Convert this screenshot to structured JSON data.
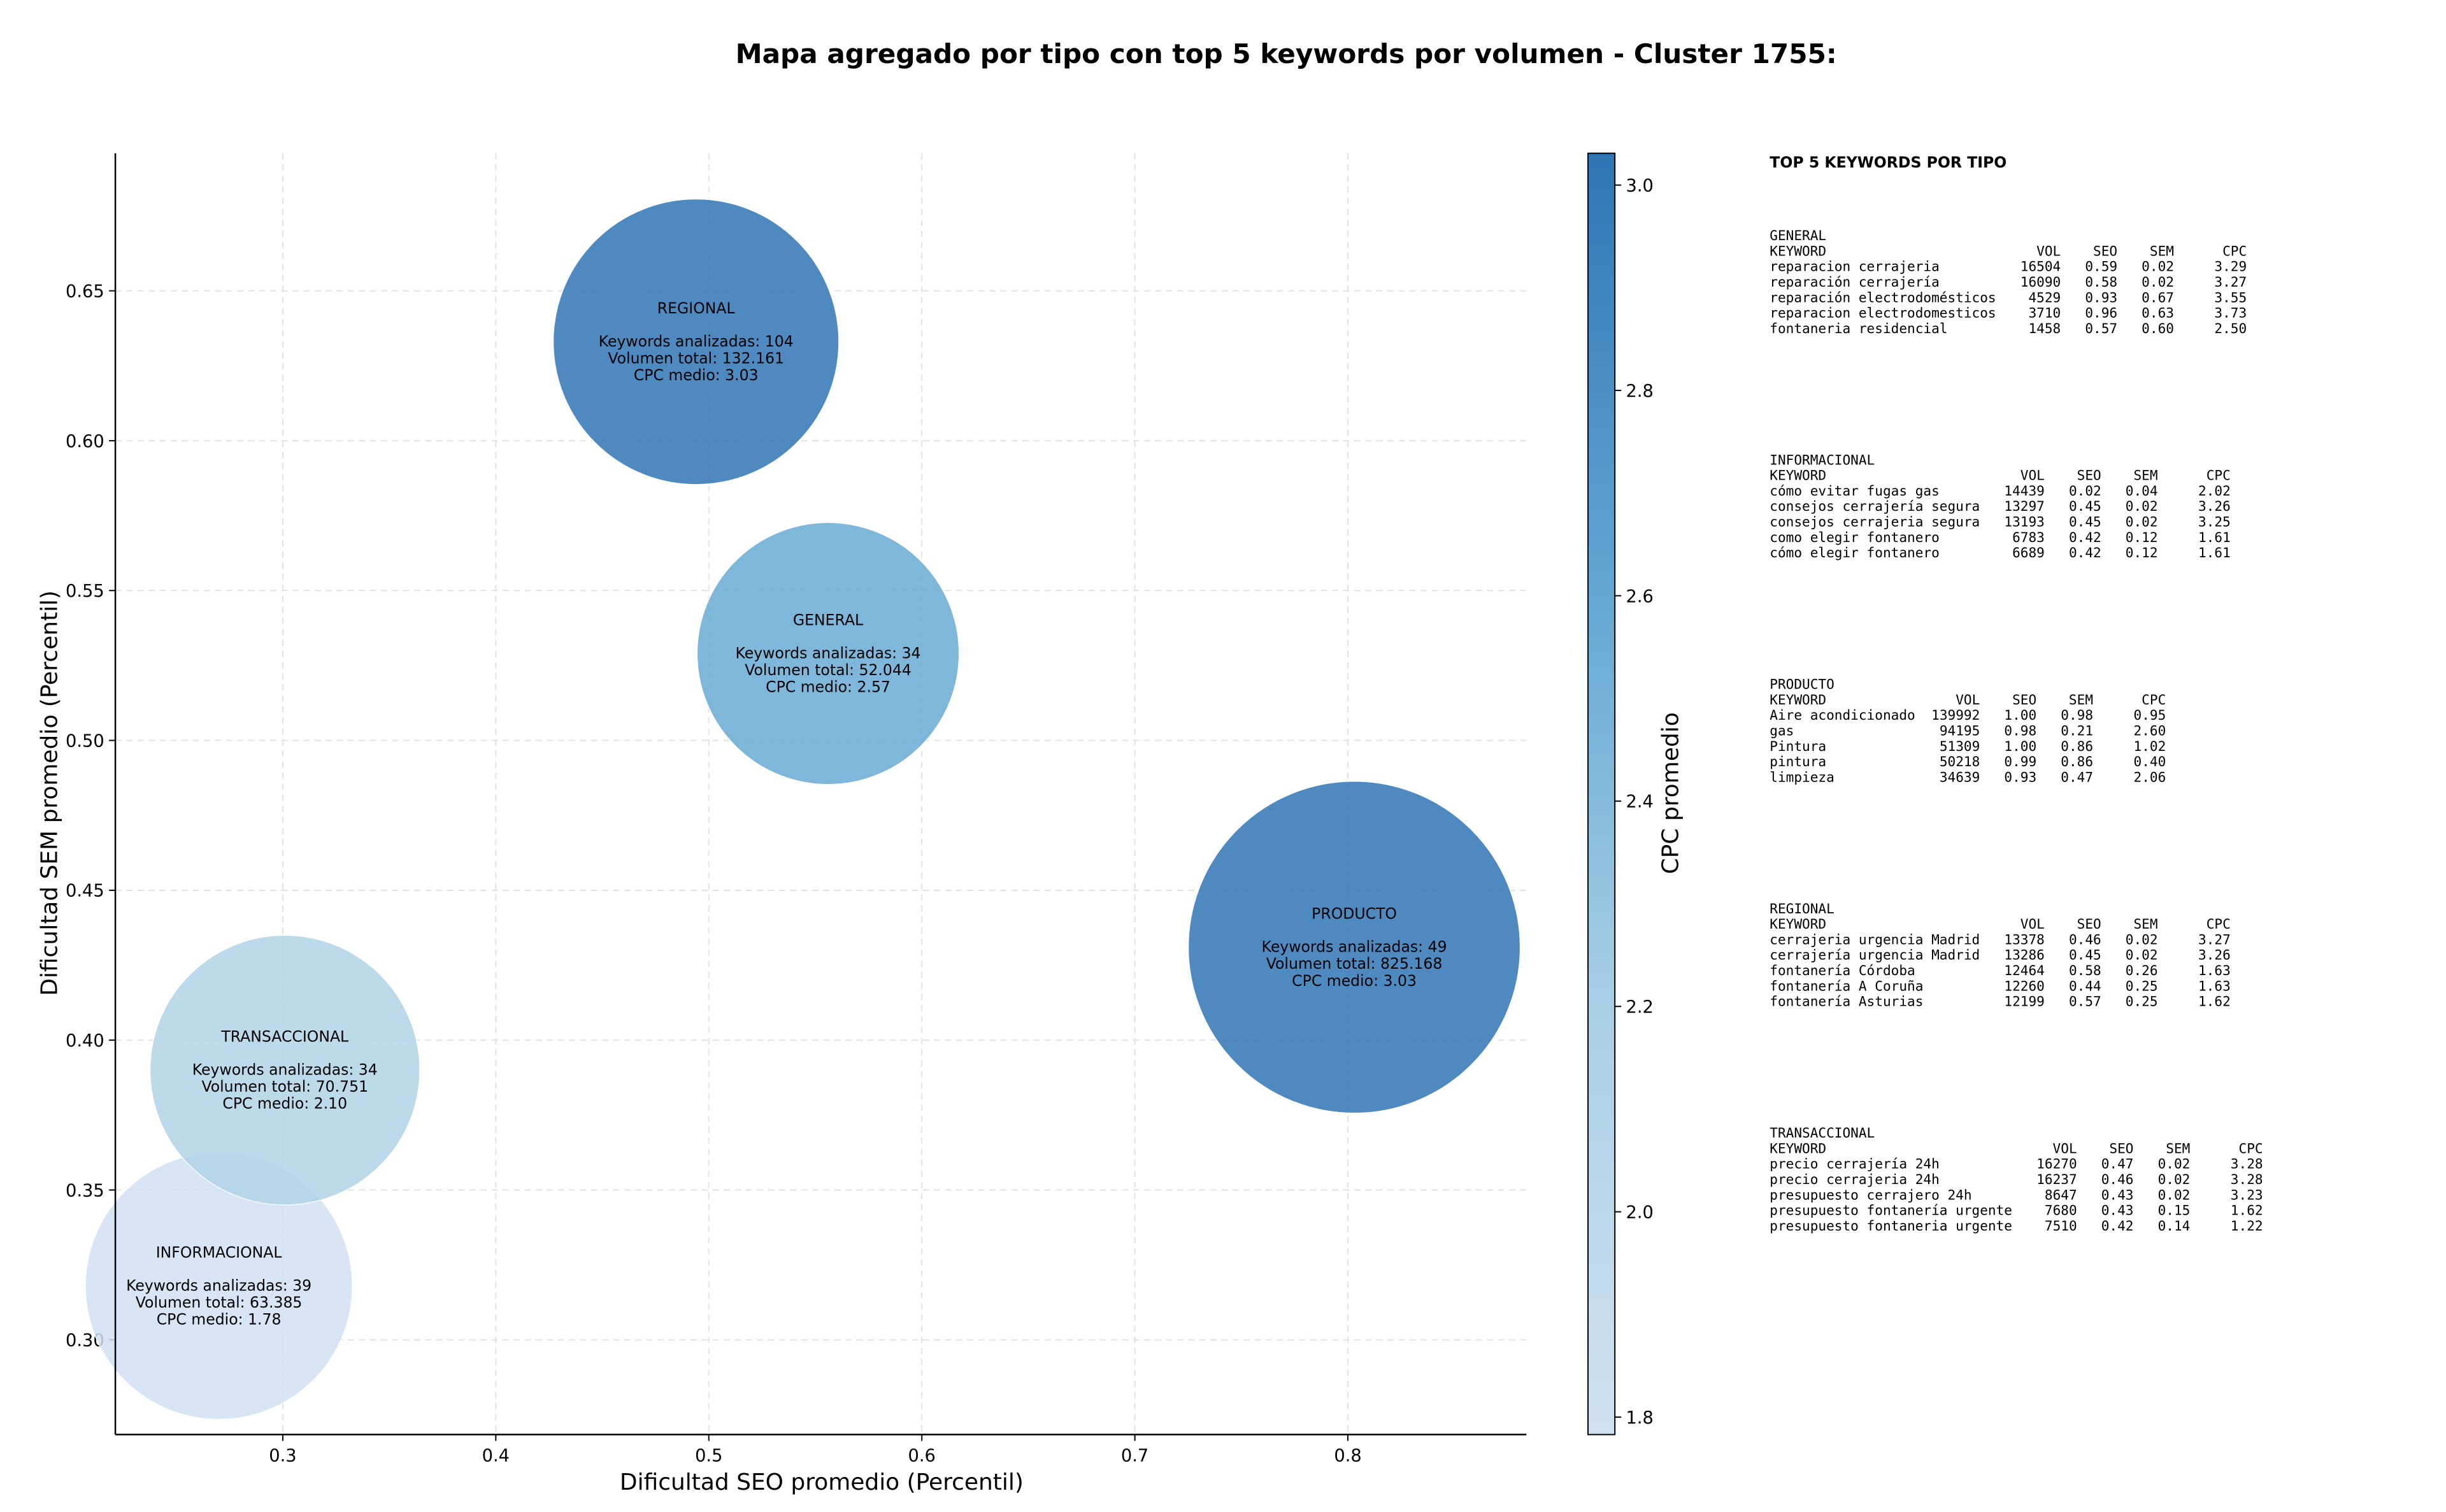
{
  "chart_data": {
    "type": "bubble",
    "title": "Mapa agregado por tipo con top 5 keywords por volumen - Cluster 1755:",
    "xlabel": "Dificultad SEO promedio (Percentil)",
    "ylabel": "Dificultad SEM promedio (Percentil)",
    "categories": [
      "GENERAL",
      "INFORMACIONAL",
      "PRODUCTO",
      "REGIONAL",
      "TRANSACCIONAL"
    ],
    "x": [
      0.556,
      0.27,
      0.803,
      0.494,
      0.301
    ],
    "y": [
      0.529,
      0.318,
      0.431,
      0.633,
      0.39
    ],
    "sizes": [
      52044,
      63385,
      825168,
      132161,
      70751
    ],
    "color_values": [
      2.57,
      1.78,
      3.03,
      3.03,
      2.1
    ],
    "annotations": [
      [
        "Keywords analizadas: 34",
        "Volumen total: 52.044",
        "CPC medio: 2.57"
      ],
      [
        "Keywords analizadas: 39",
        "Volumen total: 63.385",
        "CPC medio: 1.78"
      ],
      [
        "Keywords analizadas: 49",
        "Volumen total: 825.168",
        "CPC medio: 3.03"
      ],
      [
        "Keywords analizadas: 104",
        "Volumen total: 132.161",
        "CPC medio: 3.03"
      ],
      [
        "Keywords analizadas: 34",
        "Volumen total: 70.751",
        "CPC medio: 2.10"
      ]
    ],
    "xlim": [
      0.2214,
      0.8838
    ],
    "ylim": [
      0.2684,
      0.6959
    ],
    "xticks": [
      0.3,
      0.4,
      0.5,
      0.6,
      0.7,
      0.8
    ],
    "yticks": [
      {
        "value": 0.3,
        "label": "0.30"
      },
      {
        "value": 0.35,
        "label": "0.35"
      },
      {
        "value": 0.4,
        "label": "0.40"
      },
      {
        "value": 0.45,
        "label": "0.45"
      },
      {
        "value": 0.5,
        "label": "0.50"
      },
      {
        "value": 0.55,
        "label": "0.55"
      },
      {
        "value": 0.6,
        "label": "0.60"
      },
      {
        "value": 0.65,
        "label": "0.65"
      }
    ],
    "grid": true,
    "colorbar": {
      "label": "CPC promedio",
      "clim": [
        1.783,
        3.031
      ],
      "ticks": [
        {
          "value": 1.8,
          "label": "1.8"
        },
        {
          "value": 2.0,
          "label": "2.0"
        },
        {
          "value": 2.2,
          "label": "2.2"
        },
        {
          "value": 2.4,
          "label": "2.4"
        },
        {
          "value": 2.6,
          "label": "2.6"
        },
        {
          "value": 2.8,
          "label": "2.8"
        },
        {
          "value": 3.0,
          "label": "3.0"
        }
      ],
      "colormap": [
        "#d0e1f2",
        "#a9cfe5",
        "#60a6d2",
        "#2f75b5"
      ]
    }
  },
  "keyword_panel": {
    "title": "TOP 5 KEYWORDS POR TIPO",
    "tables": [
      {
        "name": "GENERAL",
        "columns": [
          "KEYWORD",
          "VOL",
          "SEO",
          "SEM",
          "CPC"
        ],
        "rows": [
          [
            "reparacion cerrajeria",
            "16504",
            "0.59",
            "0.02",
            "3.29"
          ],
          [
            "reparación cerrajería",
            "16090",
            "0.58",
            "0.02",
            "3.27"
          ],
          [
            "reparación electrodomésticos",
            "4529",
            "0.93",
            "0.67",
            "3.55"
          ],
          [
            "reparacion electrodomesticos",
            "3710",
            "0.96",
            "0.63",
            "3.73"
          ],
          [
            "fontaneria residencial",
            "1458",
            "0.57",
            "0.60",
            "2.50"
          ]
        ]
      },
      {
        "name": "INFORMACIONAL",
        "columns": [
          "KEYWORD",
          "VOL",
          "SEO",
          "SEM",
          "CPC"
        ],
        "rows": [
          [
            "cómo evitar fugas gas",
            "14439",
            "0.02",
            "0.04",
            "2.02"
          ],
          [
            "consejos cerrajería segura",
            "13297",
            "0.45",
            "0.02",
            "3.26"
          ],
          [
            "consejos cerrajeria segura",
            "13193",
            "0.45",
            "0.02",
            "3.25"
          ],
          [
            "como elegir fontanero",
            "6783",
            "0.42",
            "0.12",
            "1.61"
          ],
          [
            "cómo elegir fontanero",
            "6689",
            "0.42",
            "0.12",
            "1.61"
          ]
        ]
      },
      {
        "name": "PRODUCTO",
        "columns": [
          "KEYWORD",
          "VOL",
          "SEO",
          "SEM",
          "CPC"
        ],
        "rows": [
          [
            "Aire acondicionado",
            "139992",
            "1.00",
            "0.98",
            "0.95"
          ],
          [
            "gas",
            "94195",
            "0.98",
            "0.21",
            "2.60"
          ],
          [
            "Pintura",
            "51309",
            "1.00",
            "0.86",
            "1.02"
          ],
          [
            "pintura",
            "50218",
            "0.99",
            "0.86",
            "0.40"
          ],
          [
            "limpieza",
            "34639",
            "0.93",
            "0.47",
            "2.06"
          ]
        ]
      },
      {
        "name": "REGIONAL",
        "columns": [
          "KEYWORD",
          "VOL",
          "SEO",
          "SEM",
          "CPC"
        ],
        "rows": [
          [
            "cerrajeria urgencia Madrid",
            "13378",
            "0.46",
            "0.02",
            "3.27"
          ],
          [
            "cerrajería urgencia Madrid",
            "13286",
            "0.45",
            "0.02",
            "3.26"
          ],
          [
            "fontanería Córdoba",
            "12464",
            "0.58",
            "0.26",
            "1.63"
          ],
          [
            "fontanería A Coruña",
            "12260",
            "0.44",
            "0.25",
            "1.63"
          ],
          [
            "fontanería Asturias",
            "12199",
            "0.57",
            "0.25",
            "1.62"
          ]
        ]
      },
      {
        "name": "TRANSACCIONAL",
        "columns": [
          "KEYWORD",
          "VOL",
          "SEO",
          "SEM",
          "CPC"
        ],
        "rows": [
          [
            "precio cerrajería 24h",
            "16270",
            "0.47",
            "0.02",
            "3.28"
          ],
          [
            "precio cerrajeria 24h",
            "16237",
            "0.46",
            "0.02",
            "3.28"
          ],
          [
            "presupuesto cerrajero 24h",
            "8647",
            "0.43",
            "0.02",
            "3.23"
          ],
          [
            "presupuesto fontanería urgente",
            "7680",
            "0.43",
            "0.15",
            "1.62"
          ],
          [
            "presupuesto fontaneria urgente",
            "7510",
            "0.42",
            "0.14",
            "1.22"
          ]
        ]
      }
    ]
  }
}
